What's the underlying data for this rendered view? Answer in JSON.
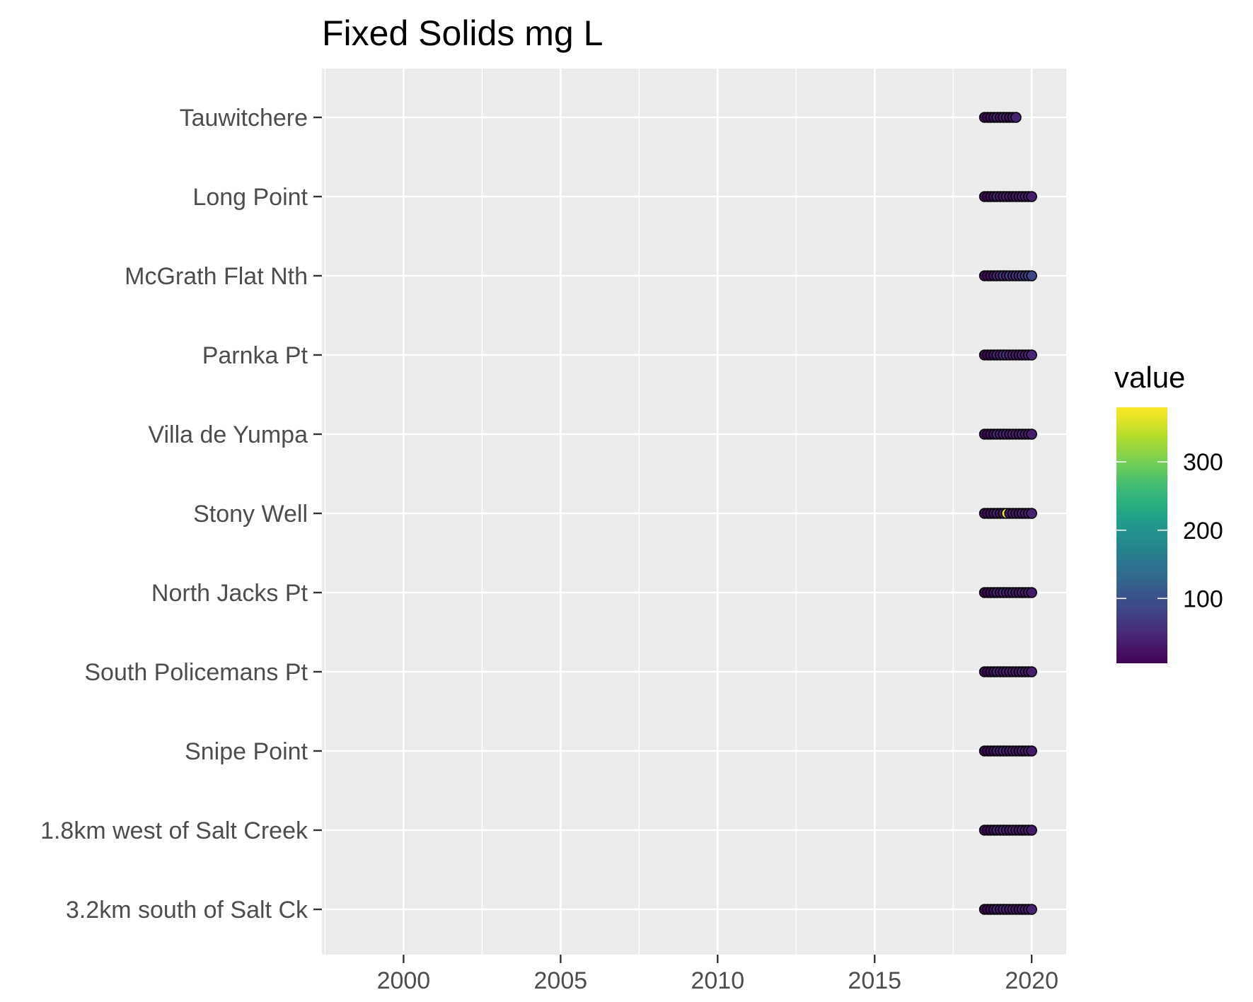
{
  "chart_data": {
    "type": "scatter",
    "title": "Fixed Solids mg L",
    "xlabel": "",
    "ylabel": "",
    "xlim": [
      1997.4,
      2021.1
    ],
    "x_ticks": [
      "2000",
      "2005",
      "2010",
      "2015",
      "2020"
    ],
    "grid": true,
    "sites": [
      "Tauwitchere",
      "Long Point",
      "McGrath Flat Nth",
      "Parnka Pt",
      "Villa de Yumpa",
      "Stony Well",
      "North Jacks Pt",
      "South Policemans Pt",
      "Snipe Point",
      "1.8km west of Salt Creek",
      "3.2km south of Salt Ck"
    ],
    "series": [
      {
        "site": "Tauwitchere",
        "x": [
          2018.5,
          2018.6,
          2018.7,
          2018.8,
          2018.9,
          2019.0,
          2019.1,
          2019.2,
          2019.3,
          2019.4,
          2019.5
        ],
        "values": [
          15,
          12,
          18,
          20,
          40,
          25,
          35,
          30,
          20,
          28,
          40
        ]
      },
      {
        "site": "Long Point",
        "x": [
          2018.5,
          2018.6,
          2018.7,
          2018.8,
          2018.9,
          2019.0,
          2019.1,
          2019.2,
          2019.3,
          2019.4,
          2019.5,
          2019.6,
          2019.7,
          2019.8,
          2019.9,
          2020.0
        ],
        "values": [
          12,
          10,
          15,
          20,
          45,
          30,
          25,
          35,
          28,
          20,
          30,
          25,
          35,
          40,
          30,
          35
        ]
      },
      {
        "site": "McGrath Flat Nth",
        "x": [
          2018.5,
          2018.6,
          2018.7,
          2018.8,
          2018.9,
          2019.0,
          2019.1,
          2019.2,
          2019.3,
          2019.4,
          2019.5,
          2019.6,
          2019.7,
          2019.8,
          2019.9,
          2020.0
        ],
        "values": [
          12,
          15,
          20,
          25,
          50,
          45,
          60,
          40,
          80,
          45,
          60,
          50,
          70,
          60,
          80,
          85
        ]
      },
      {
        "site": "Parnka Pt",
        "x": [
          2018.5,
          2018.6,
          2018.7,
          2018.8,
          2018.9,
          2019.0,
          2019.1,
          2019.2,
          2019.3,
          2019.4,
          2019.5,
          2019.6,
          2019.7,
          2019.8,
          2019.9,
          2020.0
        ],
        "values": [
          10,
          12,
          15,
          20,
          40,
          35,
          50,
          60,
          45,
          40,
          35,
          30,
          40,
          35,
          40,
          45
        ]
      },
      {
        "site": "Villa de Yumpa",
        "x": [
          2018.5,
          2018.6,
          2018.7,
          2018.8,
          2018.9,
          2019.0,
          2019.1,
          2019.2,
          2019.3,
          2019.4,
          2019.5,
          2019.6,
          2019.7,
          2019.8,
          2019.9,
          2020.0
        ],
        "values": [
          12,
          10,
          18,
          20,
          50,
          40,
          35,
          45,
          30,
          40,
          35,
          30,
          40,
          35,
          30,
          35
        ]
      },
      {
        "site": "Stony Well",
        "x": [
          2018.5,
          2018.6,
          2018.7,
          2018.8,
          2018.9,
          2019.0,
          2019.1,
          2019.2,
          2019.3,
          2019.4,
          2019.5,
          2019.6,
          2019.7,
          2019.8,
          2019.9,
          2020.0
        ],
        "values": [
          12,
          15,
          20,
          25,
          40,
          30,
          35,
          370,
          30,
          35,
          30,
          25,
          35,
          30,
          35,
          40
        ]
      },
      {
        "site": "North Jacks Pt",
        "x": [
          2018.5,
          2018.6,
          2018.7,
          2018.8,
          2018.9,
          2019.0,
          2019.1,
          2019.2,
          2019.3,
          2019.4,
          2019.5,
          2019.6,
          2019.7,
          2019.8,
          2019.9,
          2020.0
        ],
        "values": [
          10,
          12,
          15,
          20,
          40,
          30,
          45,
          35,
          30,
          40,
          30,
          25,
          35,
          30,
          35,
          30
        ]
      },
      {
        "site": "South Policemans Pt",
        "x": [
          2018.5,
          2018.6,
          2018.7,
          2018.8,
          2018.9,
          2019.0,
          2019.1,
          2019.2,
          2019.3,
          2019.4,
          2019.5,
          2019.6,
          2019.7,
          2019.8,
          2019.9,
          2020.0
        ],
        "values": [
          12,
          10,
          15,
          20,
          40,
          35,
          30,
          40,
          35,
          30,
          35,
          30,
          40,
          35,
          30,
          35
        ]
      },
      {
        "site": "Snipe Point",
        "x": [
          2018.5,
          2018.6,
          2018.7,
          2018.8,
          2018.9,
          2019.0,
          2019.1,
          2019.2,
          2019.3,
          2019.4,
          2019.5,
          2019.6,
          2019.7,
          2019.8,
          2019.9,
          2020.0
        ],
        "values": [
          10,
          12,
          15,
          18,
          35,
          30,
          40,
          35,
          30,
          35,
          30,
          25,
          35,
          30,
          35,
          30
        ]
      },
      {
        "site": "1.8km west of Salt Creek",
        "x": [
          2018.5,
          2018.6,
          2018.7,
          2018.8,
          2018.9,
          2019.0,
          2019.1,
          2019.2,
          2019.3,
          2019.4,
          2019.5,
          2019.6,
          2019.7,
          2019.8,
          2019.9,
          2020.0
        ],
        "values": [
          12,
          10,
          15,
          20,
          40,
          35,
          45,
          35,
          30,
          40,
          35,
          30,
          35,
          30,
          35,
          30
        ]
      },
      {
        "site": "3.2km south of Salt Ck",
        "x": [
          2018.5,
          2018.6,
          2018.7,
          2018.8,
          2018.9,
          2019.0,
          2019.1,
          2019.2,
          2019.3,
          2019.4,
          2019.5,
          2019.6,
          2019.7,
          2019.8,
          2019.9,
          2020.0
        ],
        "values": [
          10,
          12,
          15,
          20,
          40,
          30,
          35,
          40,
          30,
          35,
          30,
          25,
          35,
          30,
          35,
          40
        ]
      }
    ],
    "colorbar": {
      "title": "value",
      "min": 5,
      "max": 380,
      "ticks": [
        100,
        200,
        300
      ],
      "tick_labels": [
        "100",
        "200",
        "300"
      ],
      "palette": "viridis"
    },
    "colors": {
      "panel_background": "#ebebeb",
      "grid_major": "#ffffff",
      "point_outline": "#000000",
      "viridis_stops": [
        "#440154",
        "#482878",
        "#3e4989",
        "#31688e",
        "#26828e",
        "#1f9e89",
        "#35b779",
        "#6ece58",
        "#b5de2b",
        "#fde725"
      ]
    }
  }
}
